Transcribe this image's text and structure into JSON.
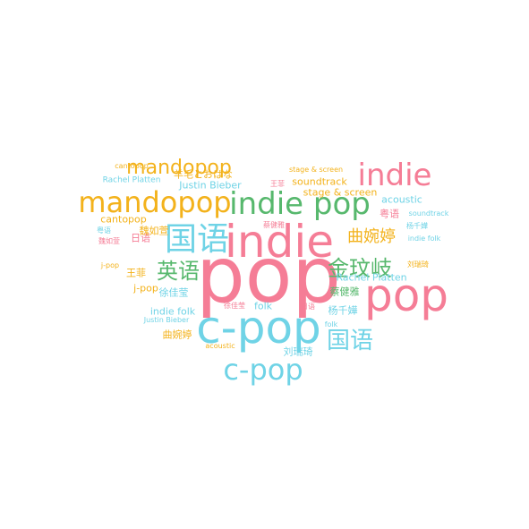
{
  "cloud": {
    "words": [
      {
        "text": "pop",
        "color": "pink"
      },
      {
        "text": "indie",
        "color": "pink"
      },
      {
        "text": "c-pop",
        "color": "cyan"
      },
      {
        "text": "pop",
        "color": "pink"
      },
      {
        "text": "mandopop",
        "color": "orange"
      },
      {
        "text": "indie pop",
        "color": "green"
      },
      {
        "text": "indie",
        "color": "pink"
      },
      {
        "text": "国语",
        "color": "cyan"
      },
      {
        "text": "c-pop",
        "color": "cyan"
      },
      {
        "text": "国语",
        "color": "cyan"
      },
      {
        "text": "mandopop",
        "color": "orange"
      },
      {
        "text": "英语",
        "color": "green"
      },
      {
        "text": "金玟岐",
        "color": "green"
      },
      {
        "text": "曲婉婷",
        "color": "orange"
      },
      {
        "text": "羊毛とおはな",
        "color": "orange"
      },
      {
        "text": "Justin Bieber",
        "color": "cyan"
      },
      {
        "text": "Rachel Platten",
        "color": "cyan"
      },
      {
        "text": "cantopop",
        "color": "orange"
      },
      {
        "text": "cantopop",
        "color": "orange"
      },
      {
        "text": "stage & screen",
        "color": "orange"
      },
      {
        "text": "stage & screen",
        "color": "orange"
      },
      {
        "text": "soundtrack",
        "color": "orange"
      },
      {
        "text": "soundtrack",
        "color": "cyan"
      },
      {
        "text": "acoustic",
        "color": "cyan"
      },
      {
        "text": "acoustic",
        "color": "orange"
      },
      {
        "text": "粤语",
        "color": "pink"
      },
      {
        "text": "粤语",
        "color": "cyan"
      },
      {
        "text": "王菲",
        "color": "pink"
      },
      {
        "text": "王菲",
        "color": "orange"
      },
      {
        "text": "蔡健雅",
        "color": "pink"
      },
      {
        "text": "蔡健雅",
        "color": "green"
      },
      {
        "text": "日语",
        "color": "pink"
      },
      {
        "text": "日语",
        "color": "pink"
      },
      {
        "text": "魏如萱",
        "color": "orange"
      },
      {
        "text": "魏如萱",
        "color": "pink"
      },
      {
        "text": "indie folk",
        "color": "cyan"
      },
      {
        "text": "indie folk",
        "color": "cyan"
      },
      {
        "text": "杨千嬅",
        "color": "cyan"
      },
      {
        "text": "杨千嬅",
        "color": "cyan"
      },
      {
        "text": "刘瑞琦",
        "color": "orange"
      },
      {
        "text": "刘瑞琦",
        "color": "cyan"
      },
      {
        "text": "Rachel Platten",
        "color": "cyan"
      },
      {
        "text": "j-pop",
        "color": "orange"
      },
      {
        "text": "j-pop",
        "color": "orange"
      },
      {
        "text": "徐佳莹",
        "color": "cyan"
      },
      {
        "text": "徐佳莹",
        "color": "pink"
      },
      {
        "text": "folk",
        "color": "cyan"
      },
      {
        "text": "folk",
        "color": "cyan"
      },
      {
        "text": "Justin Bieber",
        "color": "cyan"
      },
      {
        "text": "曲婉婷",
        "color": "orange"
      }
    ]
  }
}
